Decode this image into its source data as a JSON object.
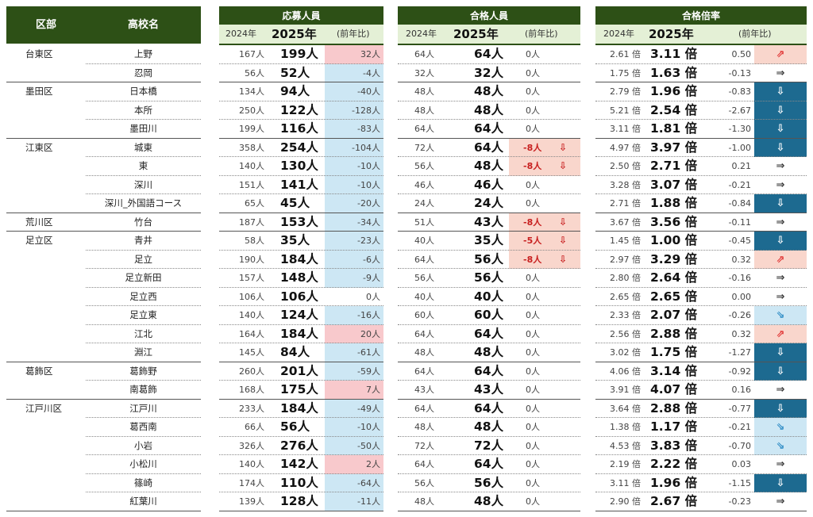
{
  "headers": {
    "ward": "区部",
    "school": "高校名",
    "applicants": "応募人員",
    "passed": "合格人員",
    "ratio": "合格倍率",
    "y2024": "2024年",
    "y2025": "2025年",
    "yoy": "(前年比)"
  },
  "rows": [
    {
      "ward": "台東区",
      "school": "上野",
      "a24": "167人",
      "a25": "199人",
      "ad": "32人",
      "adc": "red",
      "p24": "64人",
      "p25": "64人",
      "pd": "0人",
      "pdc": "",
      "r24": "2.61 倍",
      "r25": "3.11 倍",
      "rd": "0.50",
      "rdir": "up"
    },
    {
      "ward": "",
      "school": "忍岡",
      "a24": "56人",
      "a25": "52人",
      "ad": "-4人",
      "adc": "blue",
      "p24": "32人",
      "p25": "32人",
      "pd": "0人",
      "pdc": "",
      "r24": "1.75 倍",
      "r25": "1.63 倍",
      "rd": "-0.13",
      "rdir": "flat"
    },
    {
      "ward": "墨田区",
      "school": "日本橋",
      "a24": "134人",
      "a25": "94人",
      "ad": "-40人",
      "adc": "blue",
      "p24": "48人",
      "p25": "48人",
      "pd": "0人",
      "pdc": "",
      "r24": "2.79 倍",
      "r25": "1.96 倍",
      "rd": "-0.83",
      "rdir": "down"
    },
    {
      "ward": "",
      "school": "本所",
      "a24": "250人",
      "a25": "122人",
      "ad": "-128人",
      "adc": "blue",
      "p24": "48人",
      "p25": "48人",
      "pd": "0人",
      "pdc": "",
      "r24": "5.21 倍",
      "r25": "2.54 倍",
      "rd": "-2.67",
      "rdir": "down"
    },
    {
      "ward": "",
      "school": "墨田川",
      "a24": "199人",
      "a25": "116人",
      "ad": "-83人",
      "adc": "blue",
      "p24": "64人",
      "p25": "64人",
      "pd": "0人",
      "pdc": "",
      "r24": "3.11 倍",
      "r25": "1.81 倍",
      "rd": "-1.30",
      "rdir": "down"
    },
    {
      "ward": "江東区",
      "school": "城東",
      "a24": "358人",
      "a25": "254人",
      "ad": "-104人",
      "adc": "blue",
      "p24": "72人",
      "p25": "64人",
      "pd": "-8人",
      "pdc": "pink",
      "r24": "4.97 倍",
      "r25": "3.97 倍",
      "rd": "-1.00",
      "rdir": "down"
    },
    {
      "ward": "",
      "school": "東",
      "a24": "140人",
      "a25": "130人",
      "ad": "-10人",
      "adc": "blue",
      "p24": "56人",
      "p25": "48人",
      "pd": "-8人",
      "pdc": "pink",
      "r24": "2.50 倍",
      "r25": "2.71 倍",
      "rd": "0.21",
      "rdir": "flat"
    },
    {
      "ward": "",
      "school": "深川",
      "a24": "151人",
      "a25": "141人",
      "ad": "-10人",
      "adc": "blue",
      "p24": "46人",
      "p25": "46人",
      "pd": "0人",
      "pdc": "",
      "r24": "3.28 倍",
      "r25": "3.07 倍",
      "rd": "-0.21",
      "rdir": "flat"
    },
    {
      "ward": "",
      "school": "深川_外国語コース",
      "a24": "65人",
      "a25": "45人",
      "ad": "-20人",
      "adc": "blue",
      "p24": "24人",
      "p25": "24人",
      "pd": "0人",
      "pdc": "",
      "r24": "2.71 倍",
      "r25": "1.88 倍",
      "rd": "-0.84",
      "rdir": "down"
    },
    {
      "ward": "荒川区",
      "school": "竹台",
      "a24": "187人",
      "a25": "153人",
      "ad": "-34人",
      "adc": "blue",
      "p24": "51人",
      "p25": "43人",
      "pd": "-8人",
      "pdc": "pink",
      "r24": "3.67 倍",
      "r25": "3.56 倍",
      "rd": "-0.11",
      "rdir": "flat"
    },
    {
      "ward": "足立区",
      "school": "青井",
      "a24": "58人",
      "a25": "35人",
      "ad": "-23人",
      "adc": "blue",
      "p24": "40人",
      "p25": "35人",
      "pd": "-5人",
      "pdc": "pink",
      "r24": "1.45 倍",
      "r25": "1.00 倍",
      "rd": "-0.45",
      "rdir": "down"
    },
    {
      "ward": "",
      "school": "足立",
      "a24": "190人",
      "a25": "184人",
      "ad": "-6人",
      "adc": "blue",
      "p24": "64人",
      "p25": "56人",
      "pd": "-8人",
      "pdc": "pink",
      "r24": "2.97 倍",
      "r25": "3.29 倍",
      "rd": "0.32",
      "rdir": "up"
    },
    {
      "ward": "",
      "school": "足立新田",
      "a24": "157人",
      "a25": "148人",
      "ad": "-9人",
      "adc": "blue",
      "p24": "56人",
      "p25": "56人",
      "pd": "0人",
      "pdc": "",
      "r24": "2.80 倍",
      "r25": "2.64 倍",
      "rd": "-0.16",
      "rdir": "flat"
    },
    {
      "ward": "",
      "school": "足立西",
      "a24": "106人",
      "a25": "106人",
      "ad": "0人",
      "adc": "",
      "p24": "40人",
      "p25": "40人",
      "pd": "0人",
      "pdc": "",
      "r24": "2.65 倍",
      "r25": "2.65 倍",
      "rd": "0.00",
      "rdir": "flat"
    },
    {
      "ward": "",
      "school": "足立東",
      "a24": "140人",
      "a25": "124人",
      "ad": "-16人",
      "adc": "blue",
      "p24": "60人",
      "p25": "60人",
      "pd": "0人",
      "pdc": "",
      "r24": "2.33 倍",
      "r25": "2.07 倍",
      "rd": "-0.26",
      "rdir": "downsoft"
    },
    {
      "ward": "",
      "school": "江北",
      "a24": "164人",
      "a25": "184人",
      "ad": "20人",
      "adc": "red",
      "p24": "64人",
      "p25": "64人",
      "pd": "0人",
      "pdc": "",
      "r24": "2.56 倍",
      "r25": "2.88 倍",
      "rd": "0.32",
      "rdir": "up"
    },
    {
      "ward": "",
      "school": "淵江",
      "a24": "145人",
      "a25": "84人",
      "ad": "-61人",
      "adc": "blue",
      "p24": "48人",
      "p25": "48人",
      "pd": "0人",
      "pdc": "",
      "r24": "3.02 倍",
      "r25": "1.75 倍",
      "rd": "-1.27",
      "rdir": "down"
    },
    {
      "ward": "葛飾区",
      "school": "葛飾野",
      "a24": "260人",
      "a25": "201人",
      "ad": "-59人",
      "adc": "blue",
      "p24": "64人",
      "p25": "64人",
      "pd": "0人",
      "pdc": "",
      "r24": "4.06 倍",
      "r25": "3.14 倍",
      "rd": "-0.92",
      "rdir": "down"
    },
    {
      "ward": "",
      "school": "南葛飾",
      "a24": "168人",
      "a25": "175人",
      "ad": "7人",
      "adc": "red",
      "p24": "43人",
      "p25": "43人",
      "pd": "0人",
      "pdc": "",
      "r24": "3.91 倍",
      "r25": "4.07 倍",
      "rd": "0.16",
      "rdir": "flat"
    },
    {
      "ward": "江戸川区",
      "school": "江戸川",
      "a24": "233人",
      "a25": "184人",
      "ad": "-49人",
      "adc": "blue",
      "p24": "64人",
      "p25": "64人",
      "pd": "0人",
      "pdc": "",
      "r24": "3.64 倍",
      "r25": "2.88 倍",
      "rd": "-0.77",
      "rdir": "down"
    },
    {
      "ward": "",
      "school": "葛西南",
      "a24": "66人",
      "a25": "56人",
      "ad": "-10人",
      "adc": "blue",
      "p24": "48人",
      "p25": "48人",
      "pd": "0人",
      "pdc": "",
      "r24": "1.38 倍",
      "r25": "1.17 倍",
      "rd": "-0.21",
      "rdir": "downsoft"
    },
    {
      "ward": "",
      "school": "小岩",
      "a24": "326人",
      "a25": "276人",
      "ad": "-50人",
      "adc": "blue",
      "p24": "72人",
      "p25": "72人",
      "pd": "0人",
      "pdc": "",
      "r24": "4.53 倍",
      "r25": "3.83 倍",
      "rd": "-0.70",
      "rdir": "downsoft"
    },
    {
      "ward": "",
      "school": "小松川",
      "a24": "140人",
      "a25": "142人",
      "ad": "2人",
      "adc": "red",
      "p24": "64人",
      "p25": "64人",
      "pd": "0人",
      "pdc": "",
      "r24": "2.19 倍",
      "r25": "2.22 倍",
      "rd": "0.03",
      "rdir": "flat"
    },
    {
      "ward": "",
      "school": "篠崎",
      "a24": "174人",
      "a25": "110人",
      "ad": "-64人",
      "adc": "blue",
      "p24": "56人",
      "p25": "56人",
      "pd": "0人",
      "pdc": "",
      "r24": "3.11 倍",
      "r25": "1.96 倍",
      "rd": "-1.15",
      "rdir": "down"
    },
    {
      "ward": "",
      "school": "紅葉川",
      "a24": "139人",
      "a25": "128人",
      "ad": "-11人",
      "adc": "blue",
      "p24": "48人",
      "p25": "48人",
      "pd": "0人",
      "pdc": "",
      "r24": "2.90 倍",
      "r25": "2.67 倍",
      "rd": "-0.23",
      "rdir": "flat"
    }
  ],
  "icons": {
    "up": "⇗",
    "flat": "⇒",
    "down": "⇩",
    "downsoft": "⇘",
    "drop": "⇩"
  },
  "colors": {
    "header": "#2d5016",
    "subheader": "#e4f0d6",
    "increase": "#f8c9cc",
    "decrease": "#cde7f4",
    "pass_decrease": "#f9d6cc",
    "strong_down": "#1d6a90"
  }
}
